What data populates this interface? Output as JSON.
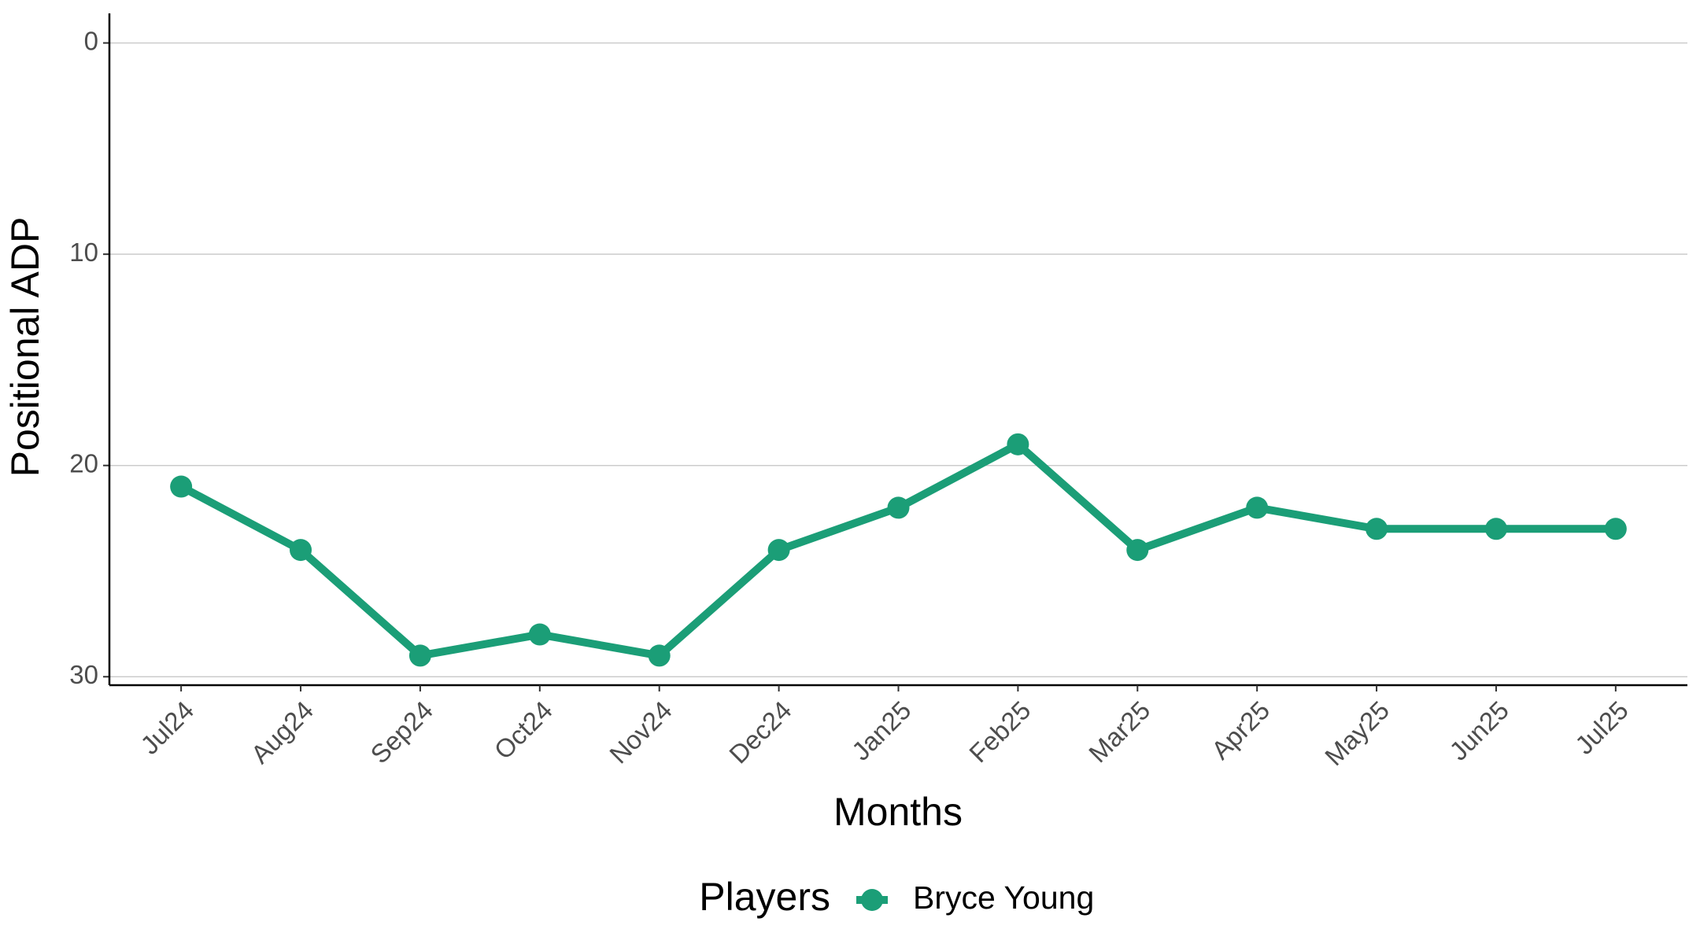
{
  "chart_data": {
    "type": "line",
    "x_label": "Months",
    "y_label": "Positional ADP",
    "categories": [
      "Jul24",
      "Aug24",
      "Sep24",
      "Oct24",
      "Nov24",
      "Dec24",
      "Jan25",
      "Feb25",
      "Mar25",
      "Apr25",
      "May25",
      "Jun25",
      "Jul25"
    ],
    "series": [
      {
        "name": "Bryce Young",
        "color": "#1b9e77",
        "values": [
          21,
          24,
          29,
          28,
          29,
          24,
          22,
          19,
          24,
          22,
          23,
          23,
          23
        ]
      }
    ],
    "ylim": [
      -1.4,
      30.4
    ],
    "yticks": [
      0,
      10,
      20,
      30
    ],
    "y_reversed": true,
    "grid": true,
    "legend_title": "Players",
    "legend_position": "bottom"
  }
}
